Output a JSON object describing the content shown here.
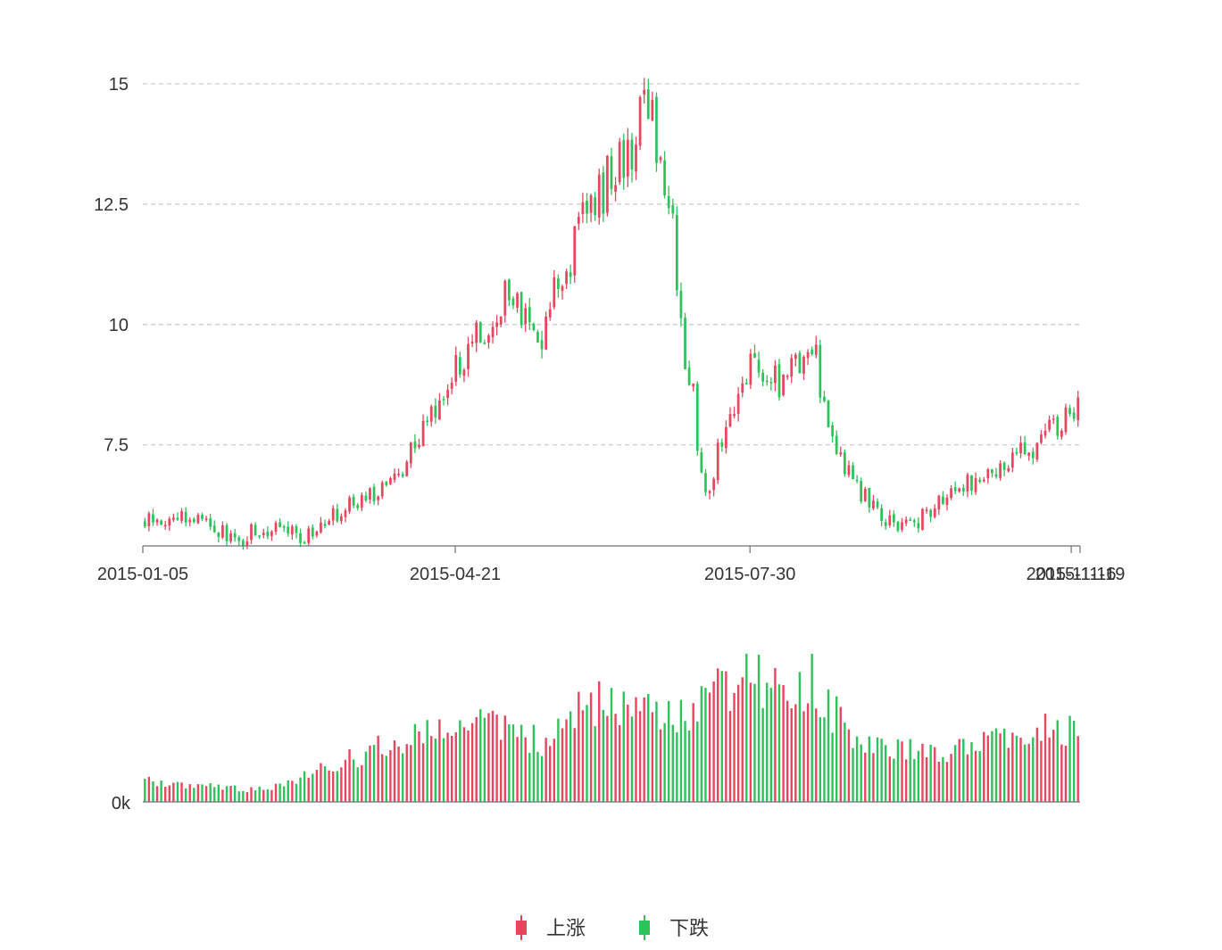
{
  "chart_data": [
    {
      "type": "candlestick",
      "title": "",
      "xlabel": "",
      "ylabel": "",
      "ylim": [
        5.4,
        16.0
      ],
      "y_ticks": [
        "15",
        "12.5",
        "10",
        "7.5"
      ],
      "y_tick_values": [
        15,
        12.5,
        10,
        7.5
      ],
      "x_ticks": [
        "2015-01-05",
        "2015-04-21",
        "2015-07-30",
        "2015-11-16",
        "2015-11-19"
      ],
      "grid": true,
      "start_date": "2015-01-05",
      "end_date": "2015-11-19",
      "up_color": "#e8455f",
      "down_color": "#2ec25b",
      "anchors": [
        [
          "2015-01-05",
          5.9
        ],
        [
          "2015-01-20",
          6.0
        ],
        [
          "2015-02-05",
          5.55
        ],
        [
          "2015-02-15",
          5.8
        ],
        [
          "2015-02-28",
          5.6
        ],
        [
          "2015-03-10",
          6.05
        ],
        [
          "2015-03-25",
          6.5
        ],
        [
          "2015-04-05",
          7.3
        ],
        [
          "2015-04-15",
          8.4
        ],
        [
          "2015-04-28",
          9.8
        ],
        [
          "2015-05-08",
          10.6
        ],
        [
          "2015-05-20",
          9.8
        ],
        [
          "2015-06-01",
          12.0
        ],
        [
          "2015-06-10",
          12.8
        ],
        [
          "2015-06-25",
          14.5
        ],
        [
          "2015-07-02",
          12.3
        ],
        [
          "2015-07-08",
          9.3
        ],
        [
          "2015-07-15",
          6.5
        ],
        [
          "2015-07-22",
          7.8
        ],
        [
          "2015-07-30",
          9.2
        ],
        [
          "2015-08-10",
          8.7
        ],
        [
          "2015-08-20",
          9.6
        ],
        [
          "2015-08-28",
          7.4
        ],
        [
          "2015-09-08",
          6.4
        ],
        [
          "2015-09-20",
          5.7
        ],
        [
          "2015-10-05",
          6.4
        ],
        [
          "2015-10-18",
          6.9
        ],
        [
          "2015-11-05",
          7.5
        ],
        [
          "2015-11-19",
          8.4
        ]
      ]
    },
    {
      "type": "bar",
      "title": "",
      "y_ticks": [
        "0k"
      ],
      "x_ticks": [],
      "anchors": [
        [
          "2015-01-05",
          0.12
        ],
        [
          "2015-02-15",
          0.07
        ],
        [
          "2015-03-10",
          0.22
        ],
        [
          "2015-04-05",
          0.38
        ],
        [
          "2015-04-28",
          0.46
        ],
        [
          "2015-05-20",
          0.36
        ],
        [
          "2015-06-10",
          0.62
        ],
        [
          "2015-06-28",
          0.5
        ],
        [
          "2015-07-10",
          0.55
        ],
        [
          "2015-07-30",
          0.78
        ],
        [
          "2015-08-12",
          0.58
        ],
        [
          "2015-08-20",
          0.7
        ],
        [
          "2015-09-05",
          0.34
        ],
        [
          "2015-10-05",
          0.3
        ],
        [
          "2015-10-25",
          0.38
        ],
        [
          "2015-11-19",
          0.45
        ]
      ]
    }
  ],
  "legend": {
    "items": [
      {
        "label": "上涨",
        "color": "#e8455f"
      },
      {
        "label": "下跌",
        "color": "#2ec25b"
      }
    ]
  }
}
